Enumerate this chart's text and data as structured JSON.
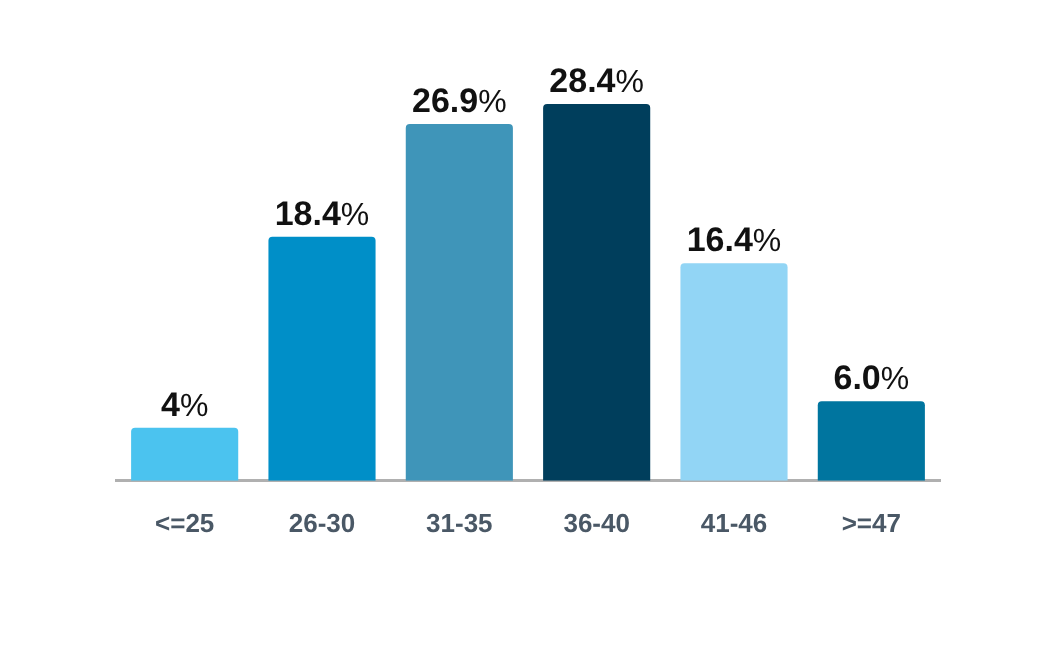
{
  "chart_data": {
    "type": "bar",
    "categories": [
      "<=25",
      "26-30",
      "31-35",
      "36-40",
      "41-46",
      ">=47"
    ],
    "values": [
      4,
      18.4,
      26.9,
      28.4,
      16.4,
      6.0
    ],
    "colors": [
      "#4bc3ef",
      "#008fc8",
      "#3f95b9",
      "#003e5c",
      "#92d5f5",
      "#00759f"
    ],
    "value_labels": [
      "4%",
      "18.4%",
      "26.9%",
      "28.4%",
      "16.4%",
      "6.0%"
    ],
    "legend": false
  }
}
